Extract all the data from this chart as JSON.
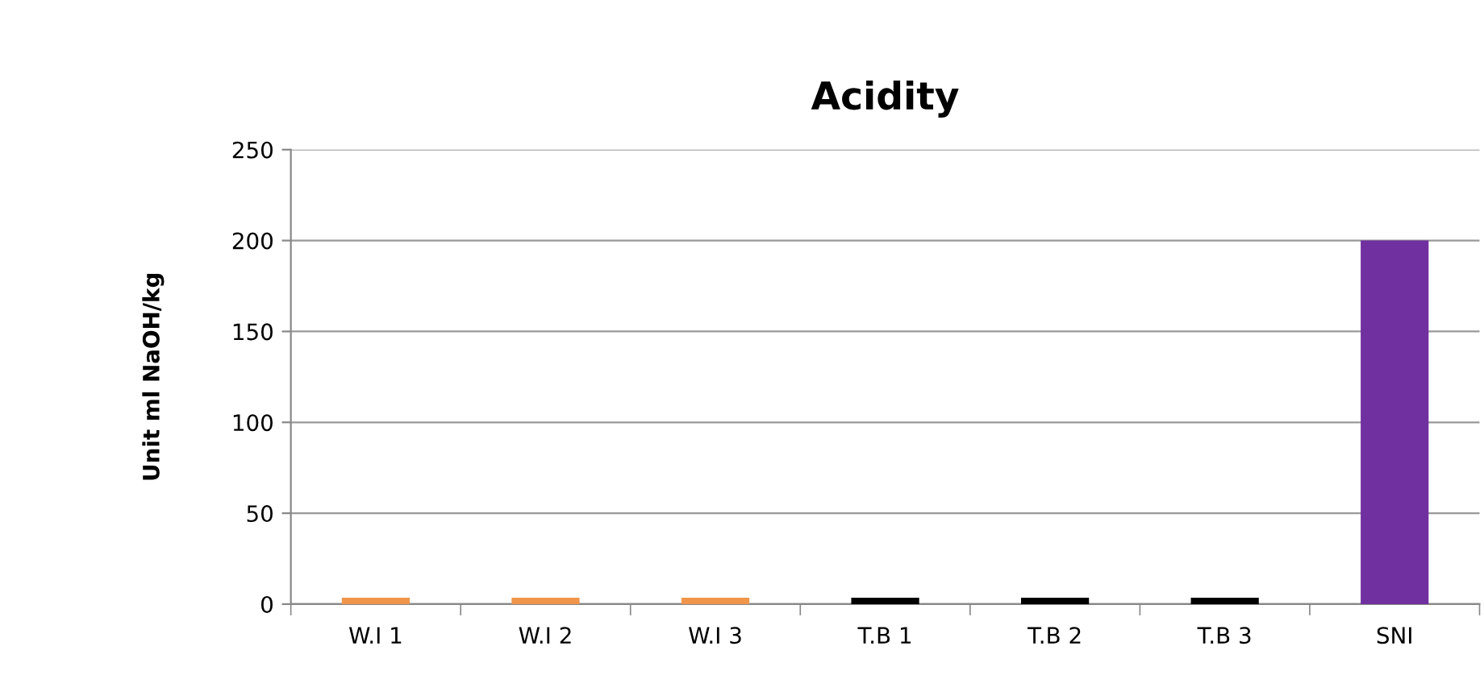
{
  "chart_data": {
    "type": "bar",
    "title": "Acidity",
    "ylabel": "Unit ml NaOH/kg",
    "categories": [
      "W.I 1",
      "W.I 2",
      "W.I 3",
      "T.B 1",
      "T.B 2",
      "T.B 3",
      "SNI"
    ],
    "values": [
      3.5,
      3.5,
      3.5,
      3.5,
      3.5,
      3.5,
      200
    ],
    "colors": [
      "#f0954a",
      "#f0954a",
      "#f0954a",
      "#000000",
      "#000000",
      "#000000",
      "#7030a0"
    ],
    "ylim": [
      0,
      250
    ],
    "yticks": [
      0,
      50,
      100,
      150,
      200,
      250
    ],
    "grid": "y",
    "legend": false
  }
}
